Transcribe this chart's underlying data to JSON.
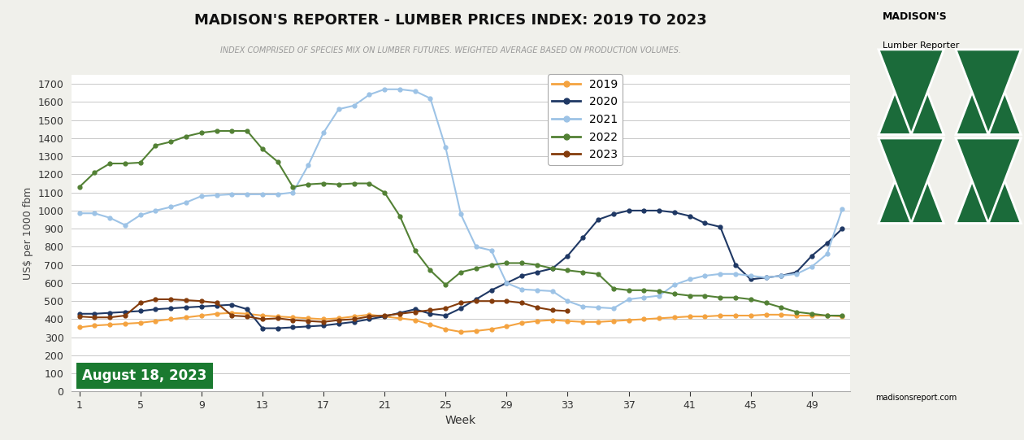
{
  "title": "MADISON'S REPORTER - LUMBER PRICES INDEX: 2019 TO 2023",
  "subtitle": "INDEX COMPRISED OF SPECIES MIX ON LUMBER FUTURES. WEIGHTED AVERAGE BASED ON PRODUCTION VOLUMES.",
  "xlabel": "Week",
  "ylabel": "US$ per 1000 fbm",
  "ylim": [
    0,
    1750
  ],
  "yticks": [
    0,
    100,
    200,
    300,
    400,
    500,
    600,
    700,
    800,
    900,
    1000,
    1100,
    1200,
    1300,
    1400,
    1500,
    1600,
    1700
  ],
  "xticks": [
    1,
    5,
    9,
    13,
    17,
    21,
    25,
    29,
    33,
    37,
    41,
    45,
    49
  ],
  "date_label": "August 18, 2023",
  "bg_color": "#f0f0eb",
  "plot_bg_color": "#ffffff",
  "series": {
    "2019": {
      "color": "#f4a340",
      "weeks": [
        1,
        2,
        3,
        4,
        5,
        6,
        7,
        8,
        9,
        10,
        11,
        12,
        13,
        14,
        15,
        16,
        17,
        18,
        19,
        20,
        21,
        22,
        23,
        24,
        25,
        26,
        27,
        28,
        29,
        30,
        31,
        32,
        33,
        34,
        35,
        36,
        37,
        38,
        39,
        40,
        41,
        42,
        43,
        44,
        45,
        46,
        47,
        48,
        49,
        50,
        51
      ],
      "values": [
        355,
        365,
        370,
        375,
        380,
        390,
        400,
        410,
        420,
        430,
        435,
        430,
        420,
        415,
        410,
        405,
        400,
        405,
        415,
        425,
        415,
        405,
        395,
        370,
        345,
        330,
        335,
        345,
        360,
        380,
        390,
        395,
        390,
        385,
        385,
        390,
        395,
        400,
        405,
        410,
        415,
        415,
        420,
        420,
        420,
        425,
        425,
        420,
        420,
        420,
        415
      ]
    },
    "2020": {
      "color": "#1f3864",
      "weeks": [
        1,
        2,
        3,
        4,
        5,
        6,
        7,
        8,
        9,
        10,
        11,
        12,
        13,
        14,
        15,
        16,
        17,
        18,
        19,
        20,
        21,
        22,
        23,
        24,
        25,
        26,
        27,
        28,
        29,
        30,
        31,
        32,
        33,
        34,
        35,
        36,
        37,
        38,
        39,
        40,
        41,
        42,
        43,
        44,
        45,
        46,
        47,
        48,
        49,
        50,
        51
      ],
      "values": [
        430,
        430,
        435,
        440,
        445,
        455,
        460,
        465,
        470,
        475,
        480,
        455,
        350,
        350,
        355,
        360,
        365,
        375,
        385,
        400,
        415,
        435,
        455,
        430,
        420,
        460,
        510,
        560,
        600,
        640,
        660,
        680,
        750,
        850,
        950,
        980,
        1000,
        1000,
        1000,
        990,
        970,
        930,
        910,
        700,
        620,
        630,
        640,
        660,
        750,
        820,
        900
      ]
    },
    "2021": {
      "color": "#9dc3e6",
      "weeks": [
        1,
        2,
        3,
        4,
        5,
        6,
        7,
        8,
        9,
        10,
        11,
        12,
        13,
        14,
        15,
        16,
        17,
        18,
        19,
        20,
        21,
        22,
        23,
        24,
        25,
        26,
        27,
        28,
        29,
        30,
        31,
        32,
        33,
        34,
        35,
        36,
        37,
        38,
        39,
        40,
        41,
        42,
        43,
        44,
        45,
        46,
        47,
        48,
        49,
        50,
        51
      ],
      "values": [
        985,
        985,
        960,
        920,
        975,
        1000,
        1020,
        1045,
        1080,
        1085,
        1090,
        1090,
        1090,
        1090,
        1100,
        1250,
        1430,
        1560,
        1580,
        1640,
        1670,
        1670,
        1660,
        1620,
        1350,
        980,
        800,
        780,
        600,
        565,
        560,
        555,
        500,
        470,
        465,
        460,
        510,
        520,
        530,
        590,
        620,
        640,
        650,
        650,
        640,
        630,
        640,
        650,
        690,
        760,
        1010
      ]
    },
    "2022": {
      "color": "#538135",
      "weeks": [
        1,
        2,
        3,
        4,
        5,
        6,
        7,
        8,
        9,
        10,
        11,
        12,
        13,
        14,
        15,
        16,
        17,
        18,
        19,
        20,
        21,
        22,
        23,
        24,
        25,
        26,
        27,
        28,
        29,
        30,
        31,
        32,
        33,
        34,
        35,
        36,
        37,
        38,
        39,
        40,
        41,
        42,
        43,
        44,
        45,
        46,
        47,
        48,
        49,
        50,
        51
      ],
      "values": [
        1130,
        1210,
        1260,
        1260,
        1265,
        1360,
        1380,
        1410,
        1430,
        1440,
        1440,
        1440,
        1340,
        1270,
        1130,
        1145,
        1150,
        1145,
        1150,
        1150,
        1100,
        970,
        780,
        670,
        590,
        660,
        680,
        700,
        710,
        710,
        700,
        680,
        670,
        660,
        650,
        570,
        560,
        560,
        555,
        540,
        530,
        530,
        520,
        520,
        510,
        490,
        465,
        440,
        430,
        420,
        420
      ]
    },
    "2023": {
      "color": "#843c0c",
      "weeks": [
        1,
        2,
        3,
        4,
        5,
        6,
        7,
        8,
        9,
        10,
        11,
        12,
        13,
        14,
        15,
        16,
        17,
        18,
        19,
        20,
        21,
        22,
        23,
        24,
        25,
        26,
        27,
        28,
        29,
        30,
        31,
        32,
        33
      ],
      "values": [
        415,
        410,
        410,
        420,
        490,
        510,
        510,
        505,
        500,
        490,
        420,
        415,
        400,
        405,
        395,
        390,
        385,
        395,
        400,
        415,
        420,
        430,
        440,
        450,
        460,
        490,
        500,
        500,
        500,
        490,
        465,
        450,
        445
      ]
    }
  }
}
